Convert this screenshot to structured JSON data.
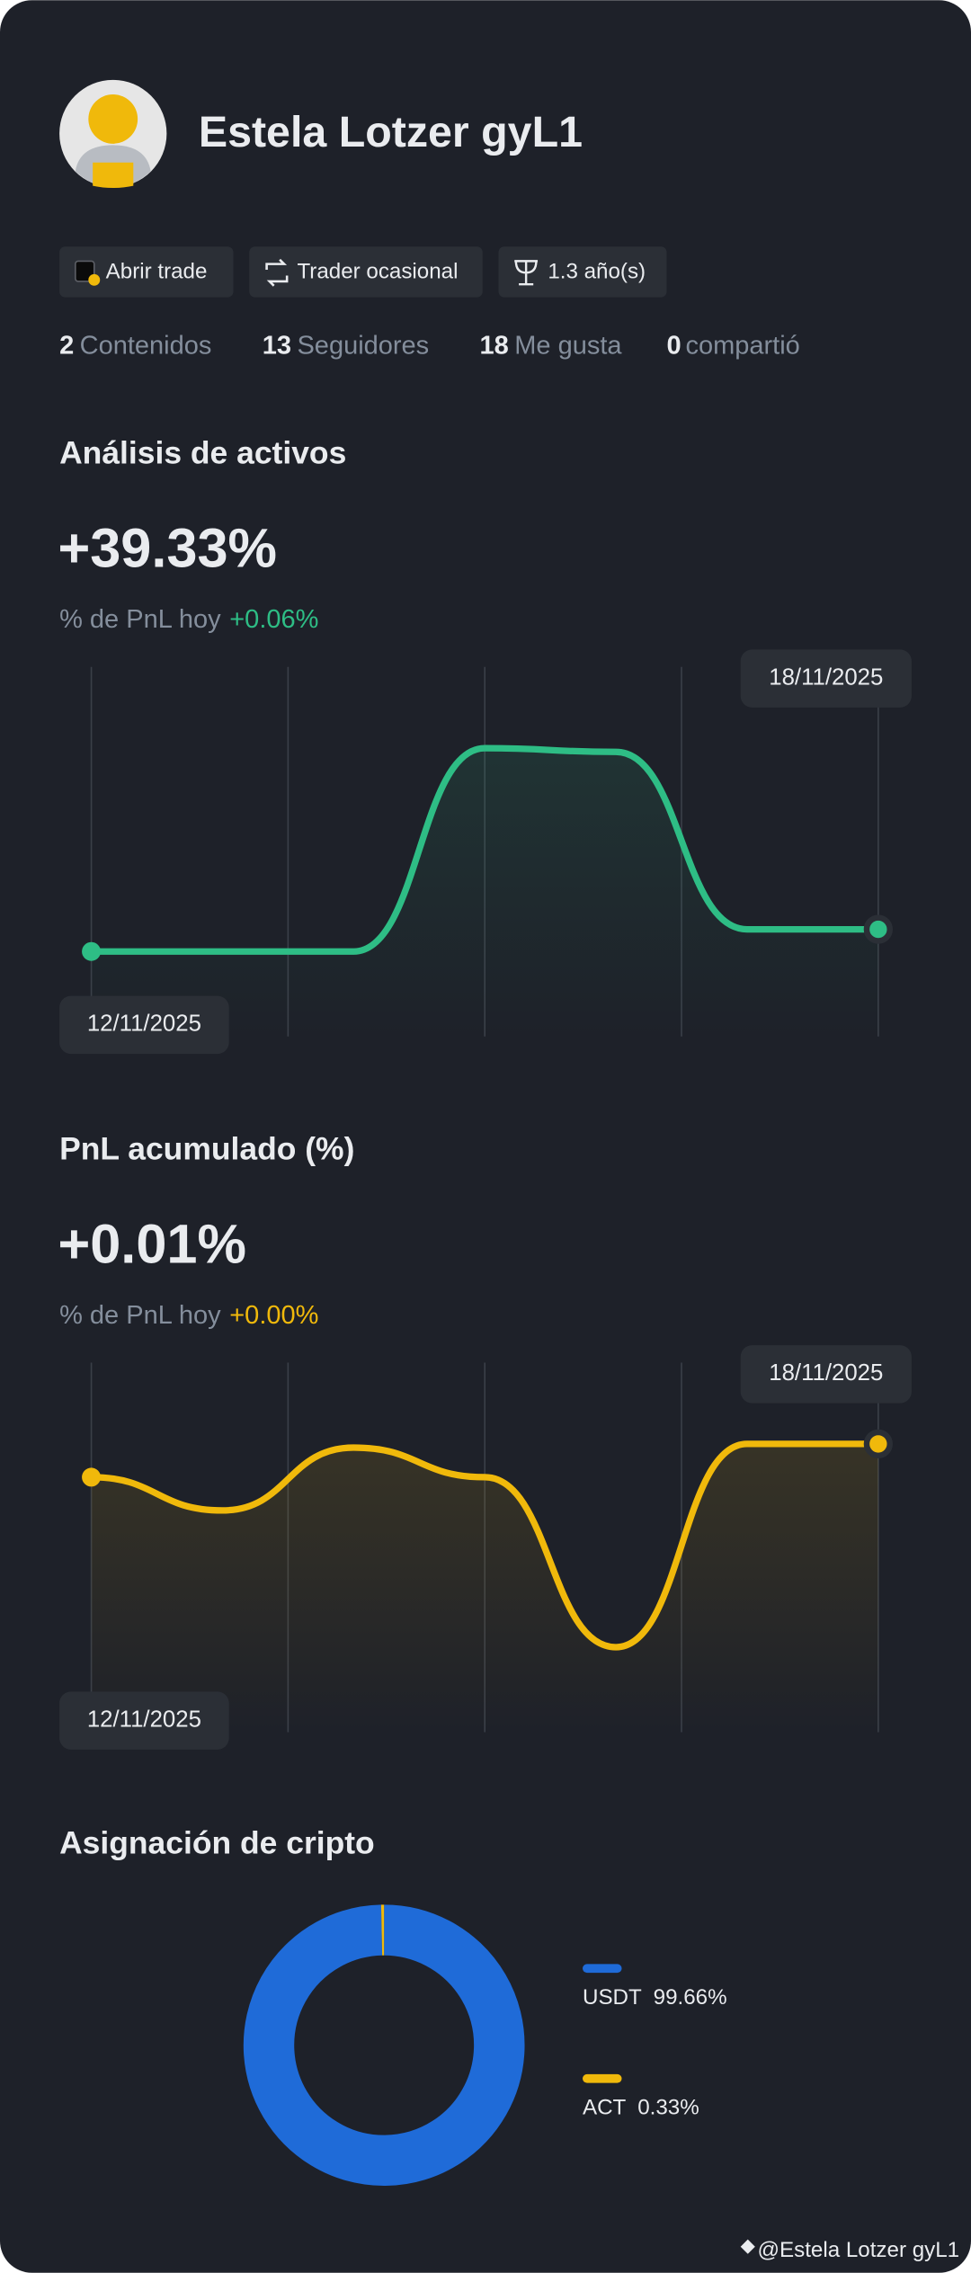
{
  "profile": {
    "name": "Estela Lotzer gyL1",
    "badges": [
      "Abrir trade",
      "Trader ocasional",
      "1.3 año(s)"
    ],
    "stats": [
      {
        "count": "2",
        "label": "Contenidos"
      },
      {
        "count": "13",
        "label": "Seguidores"
      },
      {
        "count": "18",
        "label": "Me gusta"
      },
      {
        "count": "0",
        "label": "compartió"
      }
    ]
  },
  "chart_data": [
    {
      "type": "line",
      "title": "Análisis de activos",
      "headline": "+39.33%",
      "subtitle": "% de PnL hoy",
      "change": "+0.06%",
      "categories": [
        "12/11/2025",
        null,
        null,
        null,
        null,
        null,
        "18/11/2025"
      ],
      "values": [
        23,
        23,
        23,
        78,
        77,
        29,
        29
      ],
      "color": "#2ebd85",
      "ylim": [
        0,
        100
      ]
    },
    {
      "type": "line",
      "title": "PnL acumulado (%)",
      "headline": "+0.01%",
      "subtitle": "% de PnL hoy",
      "change": "+0.00%",
      "categories": [
        "12/11/2025",
        null,
        null,
        null,
        null,
        null,
        "18/11/2025"
      ],
      "values": [
        69,
        60,
        77,
        69,
        23,
        78,
        78
      ],
      "color": "#f0b90b",
      "ylim": [
        0,
        100
      ]
    },
    {
      "type": "pie",
      "title": "Asignación de cripto",
      "categories": [
        "USDT",
        "ACT"
      ],
      "values": [
        99.66,
        0.33
      ],
      "value_labels": [
        "99.66%",
        "0.33%"
      ],
      "colors": [
        "#1f6bd8",
        "#f0b90b"
      ]
    }
  ],
  "footer": "@Estela Lotzer gyL1"
}
